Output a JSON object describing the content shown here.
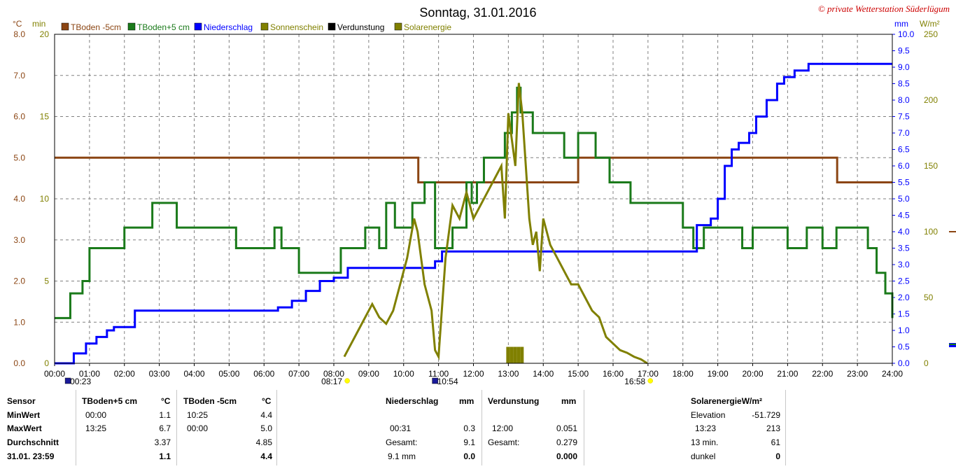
{
  "title": "Sonntag, 31.01.2016",
  "copyright": "© private Wetterstation Süderlügum",
  "units_left": [
    "°C",
    "min"
  ],
  "units_right": [
    "mm",
    "W/m²"
  ],
  "legend": [
    {
      "label": "TBoden -5cm",
      "color": "#8B4513"
    },
    {
      "label": "TBoden+5 cm",
      "color": "#1a7a1a"
    },
    {
      "label": "Niederschlag",
      "color": "#0000ff"
    },
    {
      "label": "Sonnenschein",
      "color": "#808000"
    },
    {
      "label": "Verdunstung",
      "color": "#000000"
    },
    {
      "label": "Solarenergie",
      "color": "#808000"
    }
  ],
  "axis_ticks": {
    "x": [
      "00:00",
      "01:00",
      "02:00",
      "03:00",
      "04:00",
      "05:00",
      "06:00",
      "07:00",
      "08:00",
      "09:00",
      "10:00",
      "11:00",
      "12:00",
      "13:00",
      "14:00",
      "15:00",
      "16:00",
      "17:00",
      "18:00",
      "19:00",
      "20:00",
      "21:00",
      "22:00",
      "23:00",
      "24:00"
    ],
    "temp": [
      "0.0",
      "1.0",
      "2.0",
      "3.0",
      "4.0",
      "5.0",
      "6.0",
      "7.0",
      "8.0"
    ],
    "minutes": [
      "0",
      "5",
      "10",
      "15",
      "20"
    ],
    "precip": [
      "0.0",
      "0.5",
      "1.0",
      "1.5",
      "2.0",
      "2.5",
      "3.0",
      "3.5",
      "4.0",
      "4.5",
      "5.0",
      "5.5",
      "6.0",
      "6.5",
      "7.0",
      "7.5",
      "8.0",
      "8.5",
      "9.0",
      "9.5",
      "10.0"
    ],
    "solar": [
      "0",
      "50",
      "100",
      "150",
      "200",
      "250"
    ]
  },
  "time_markers": [
    {
      "time": "00:23",
      "hour": 0.383,
      "icon": "moon-icon"
    },
    {
      "time": "08:17",
      "hour": 8.283,
      "icon": "sunrise-icon"
    },
    {
      "time": "10:54",
      "hour": 10.9,
      "icon": "moon-icon"
    },
    {
      "time": "16:58",
      "hour": 16.967,
      "icon": "sunset-icon"
    }
  ],
  "chart_data": {
    "type": "line",
    "xlim": [
      0,
      24
    ],
    "ylim_temp": [
      0,
      8
    ],
    "ylim_minutes": [
      0,
      20
    ],
    "ylim_precip": [
      0,
      10
    ],
    "ylim_solar": [
      0,
      250
    ],
    "grid": true,
    "series": [
      {
        "name": "TBoden -5cm",
        "axis": "temp",
        "color": "#8B4513",
        "step": true,
        "x": [
          0,
          10.42,
          15.0,
          22.42,
          24
        ],
        "y": [
          5.0,
          4.4,
          5.0,
          4.4,
          4.4
        ]
      },
      {
        "name": "TBoden+5 cm",
        "axis": "temp",
        "color": "#1a7a1a",
        "step": true,
        "x": [
          0,
          0.4,
          0.45,
          0.8,
          1.0,
          1.8,
          2.0,
          2.8,
          3.5,
          4.0,
          4.25,
          5.2,
          5.5,
          6.0,
          6.3,
          6.5,
          7.0,
          8.2,
          8.9,
          9.3,
          9.5,
          9.75,
          10.25,
          10.6,
          10.9,
          11.4,
          11.8,
          11.95,
          12.1,
          12.3,
          12.9,
          13.1,
          13.25,
          13.35,
          13.45,
          13.7,
          14.0,
          14.6,
          15.0,
          15.5,
          15.9,
          16.5,
          16.8,
          18.0,
          18.3,
          18.6,
          19.7,
          20.0,
          21.0,
          21.55,
          22.0,
          22.4,
          22.6,
          23.0,
          23.3,
          23.55,
          23.8,
          24.0
        ],
        "y": [
          1.1,
          1.1,
          1.7,
          2.0,
          2.8,
          2.8,
          3.3,
          3.9,
          3.3,
          3.3,
          3.3,
          2.8,
          2.8,
          2.8,
          3.3,
          2.8,
          2.2,
          2.8,
          3.3,
          2.8,
          3.9,
          3.3,
          3.9,
          4.4,
          2.8,
          3.3,
          4.4,
          3.9,
          4.4,
          5.0,
          5.6,
          6.1,
          6.7,
          6.1,
          6.1,
          5.6,
          5.6,
          5.0,
          5.6,
          5.0,
          4.4,
          3.9,
          3.9,
          3.3,
          2.8,
          3.3,
          2.8,
          3.3,
          2.8,
          3.3,
          2.8,
          3.3,
          3.3,
          3.3,
          2.8,
          2.2,
          1.7,
          1.1
        ]
      },
      {
        "name": "Niederschlag",
        "axis": "precip",
        "color": "#0000ff",
        "step": true,
        "x": [
          0,
          0.55,
          0.9,
          1.2,
          1.5,
          1.7,
          2.3,
          6.4,
          6.8,
          7.2,
          7.6,
          8.0,
          8.4,
          10.7,
          10.9,
          11.1,
          18.2,
          18.4,
          18.8,
          19.0,
          19.2,
          19.4,
          19.6,
          19.9,
          20.1,
          20.4,
          20.7,
          20.9,
          21.2,
          21.6,
          22.5,
          24.0
        ],
        "y": [
          0.0,
          0.3,
          0.6,
          0.8,
          1.0,
          1.1,
          1.6,
          1.7,
          1.9,
          2.2,
          2.5,
          2.6,
          2.9,
          2.9,
          3.1,
          3.4,
          3.4,
          4.2,
          4.4,
          5.0,
          6.0,
          6.5,
          6.7,
          7.0,
          7.5,
          8.0,
          8.5,
          8.7,
          8.9,
          9.1,
          9.1,
          9.1
        ]
      },
      {
        "name": "Sonnenschein",
        "axis": "minutes",
        "color": "#808000",
        "type": "bar",
        "x": [
          13.0,
          13.1,
          13.2,
          13.3,
          13.4
        ],
        "y": [
          1.0,
          1.0,
          1.0,
          1.0,
          1.0
        ]
      },
      {
        "name": "Solarenergie",
        "axis": "solar",
        "color": "#808000",
        "step": false,
        "x": [
          8.3,
          8.5,
          8.7,
          8.9,
          9.1,
          9.3,
          9.5,
          9.7,
          9.9,
          10.1,
          10.3,
          10.4,
          10.5,
          10.6,
          10.8,
          10.9,
          11.0,
          11.2,
          11.4,
          11.6,
          11.8,
          12.0,
          12.2,
          12.4,
          12.6,
          12.8,
          12.9,
          13.0,
          13.1,
          13.2,
          13.3,
          13.4,
          13.5,
          13.6,
          13.7,
          13.8,
          13.9,
          14.0,
          14.2,
          14.4,
          14.6,
          14.8,
          15.0,
          15.2,
          15.4,
          15.6,
          15.8,
          16.0,
          16.2,
          16.4,
          16.6,
          16.8,
          16.98
        ],
        "y": [
          5,
          15,
          25,
          35,
          45,
          35,
          30,
          40,
          60,
          80,
          110,
          100,
          80,
          60,
          40,
          10,
          5,
          80,
          120,
          110,
          130,
          110,
          120,
          130,
          140,
          150,
          110,
          190,
          170,
          150,
          213,
          190,
          150,
          110,
          90,
          100,
          70,
          110,
          90,
          80,
          70,
          60,
          60,
          50,
          40,
          35,
          20,
          15,
          10,
          8,
          5,
          3,
          0
        ]
      }
    ]
  },
  "table": {
    "header": [
      "Sensor",
      "TBoden+5 cm",
      "°C",
      "TBoden -5cm",
      "°C",
      "Niederschlag",
      "mm",
      "Verdunstung",
      "mm",
      "SolarenergieW/m²"
    ],
    "rows": [
      {
        "label": "MinWert",
        "t5_time": "00:00",
        "t5_val": "1.1",
        "tm5_time": "10:25",
        "tm5_val": "4.4",
        "solar_label": "Elevation",
        "solar_val": "-51.729"
      },
      {
        "label": "MaxWert",
        "t5_time": "13:25",
        "t5_val": "6.7",
        "tm5_time": "00:00",
        "tm5_val": "5.0",
        "rain_label": "00:31",
        "rain_val": "0.3",
        "evap_label": "12:00",
        "evap_val": "0.051",
        "solar_label": "13:23",
        "solar_val": "213"
      },
      {
        "label": "Durchschnitt",
        "t5_val": "3.37",
        "tm5_val": "4.85",
        "rain_label": "Gesamt:",
        "rain_val": "9.1",
        "evap_label": "Gesamt:",
        "evap_val": "0.279",
        "solar_label": "13 min.",
        "solar_val": "61"
      },
      {
        "label": "31.01. 23:59",
        "t5_val": "1.1",
        "tm5_val": "4.4",
        "rain_label": "9.1 mm",
        "rain_val": "0.0",
        "evap_val": "0.000",
        "solar_label": "dunkel",
        "solar_val": "0"
      }
    ]
  }
}
